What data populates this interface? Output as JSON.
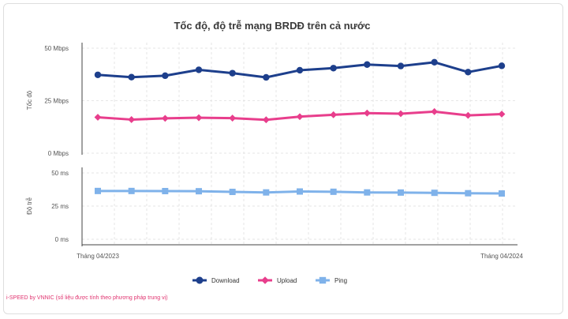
{
  "chart_data": {
    "type": "line",
    "title": "Tốc độ, độ trễ mạng BRDĐ trên cả nước",
    "x": [
      "Tháng 04/2023",
      "",
      "",
      "",
      "",
      "",
      "",
      "",
      "",
      "",
      "",
      "",
      "Tháng 04/2024"
    ],
    "x_tick_labels": [
      "Tháng 04/2023",
      "Tháng 04/2024"
    ],
    "panels": [
      {
        "id": "speed",
        "ylabel": "Tốc độ",
        "ylim": [
          0,
          50
        ],
        "y_ticks": [
          0,
          25,
          50
        ],
        "y_tick_labels": [
          "0 Mbps",
          "25 Mbps",
          "50 Mbps"
        ],
        "series": [
          {
            "name": "Download",
            "color": "#1d3f8c",
            "marker": "circle",
            "values": [
              37.3,
              36.2,
              36.9,
              39.7,
              38.1,
              36.1,
              39.5,
              40.5,
              42.2,
              41.5,
              43.3,
              38.6,
              41.6
            ]
          },
          {
            "name": "Upload",
            "color": "#e83e8c",
            "marker": "diamond",
            "values": [
              17.1,
              16.0,
              16.6,
              16.9,
              16.7,
              15.9,
              17.4,
              18.3,
              19.1,
              18.8,
              19.8,
              18.0,
              18.6
            ]
          }
        ]
      },
      {
        "id": "latency",
        "ylabel": "Độ trễ",
        "ylim": [
          0,
          50
        ],
        "y_ticks": [
          0,
          25,
          50
        ],
        "y_tick_labels": [
          "0 ms",
          "25 ms",
          "50 ms"
        ],
        "series": [
          {
            "name": "Ping",
            "color": "#7fb2ea",
            "marker": "square",
            "values": [
              36.4,
              36.4,
              36.3,
              36.2,
              35.7,
              35.3,
              36.0,
              35.8,
              35.3,
              35.2,
              35.0,
              34.7,
              34.5
            ]
          }
        ]
      }
    ],
    "grid": true,
    "legend": {
      "position": "bottom",
      "entries": [
        {
          "name": "Download",
          "color": "#1d3f8c",
          "marker": "circle"
        },
        {
          "name": "Upload",
          "color": "#e83e8c",
          "marker": "diamond"
        },
        {
          "name": "Ping",
          "color": "#7fb2ea",
          "marker": "square"
        }
      ]
    },
    "footnote": "i-SPEED by VNNIC (số liệu được tính theo phương pháp trung vị)"
  }
}
